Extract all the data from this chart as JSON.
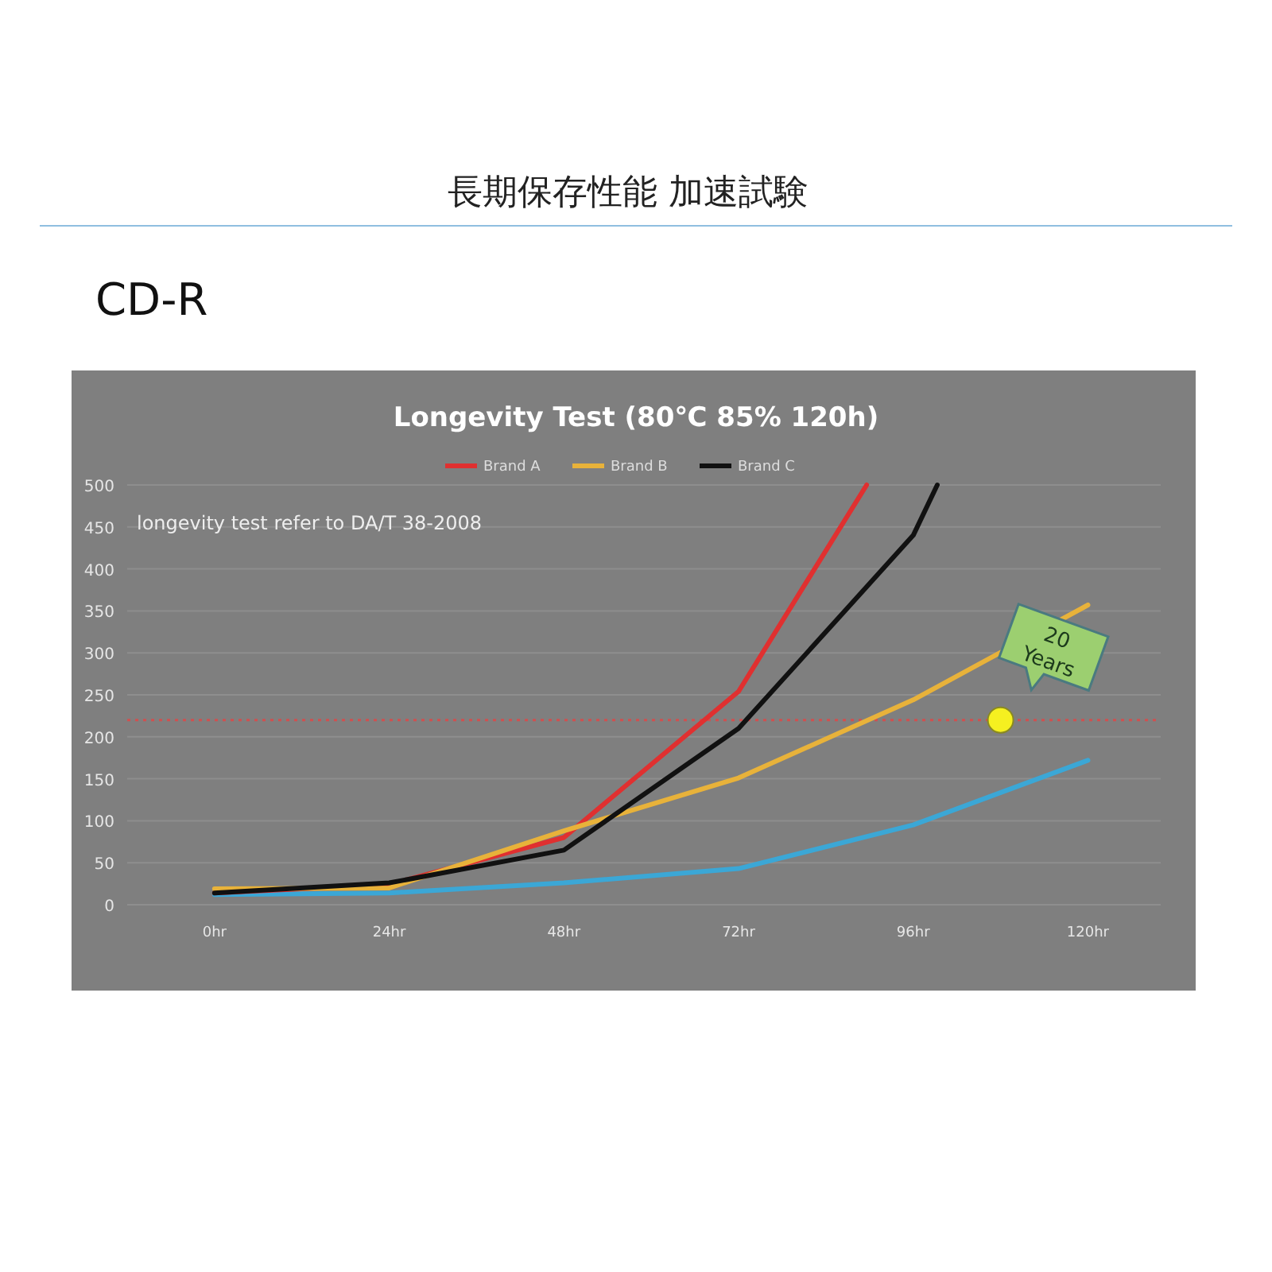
{
  "chart_data": {
    "type": "line",
    "title": "Longevity Test (80℃ 85% 120h)",
    "annotations": [
      "長期保存性能 加速試験",
      "CD-R",
      "longevity test refer to DA/T 38-2008",
      {
        "text": "20 Years",
        "x": 108,
        "y": 220
      }
    ],
    "series": [
      {
        "color": "#3ba7d6",
        "x": [
          0,
          24,
          48,
          72,
          96,
          120
        ],
        "values": [
          12,
          14,
          26,
          43,
          95,
          172
        ]
      },
      {
        "name": "Brand A",
        "color": "#e03030",
        "x": [
          0,
          24,
          48,
          72,
          89.6
        ],
        "values": [
          14,
          24,
          80,
          254,
          500
        ]
      },
      {
        "name": "Brand B",
        "color": "#e8b23a",
        "x": [
          0,
          24,
          48,
          72,
          96,
          120
        ],
        "values": [
          19,
          20,
          88,
          151,
          244,
          357
        ]
      },
      {
        "name": "Brand C",
        "color": "#111111",
        "x": [
          0,
          24,
          48,
          72,
          96,
          99.3
        ],
        "values": [
          14,
          26,
          65,
          210,
          440,
          500
        ]
      }
    ],
    "xlim": [
      -12,
      130
    ],
    "xticks": [
      {
        "value": 0,
        "label": "0hr"
      },
      {
        "value": 24,
        "label": "24hr"
      },
      {
        "value": 48,
        "label": "48hr"
      },
      {
        "value": 72,
        "label": "72hr"
      },
      {
        "value": 96,
        "label": "96hr"
      },
      {
        "value": 120,
        "label": "120hr"
      }
    ],
    "ylim": [
      0,
      500
    ],
    "yticks": [
      0,
      50,
      100,
      150,
      200,
      250,
      300,
      350,
      400,
      450,
      500
    ],
    "ref_lines": [
      {
        "axis": "y",
        "value": 220,
        "color": "#d05050",
        "line_style": "dotted"
      }
    ],
    "grid": "y",
    "legend": "top",
    "marker": "none",
    "line_style": "solid"
  }
}
